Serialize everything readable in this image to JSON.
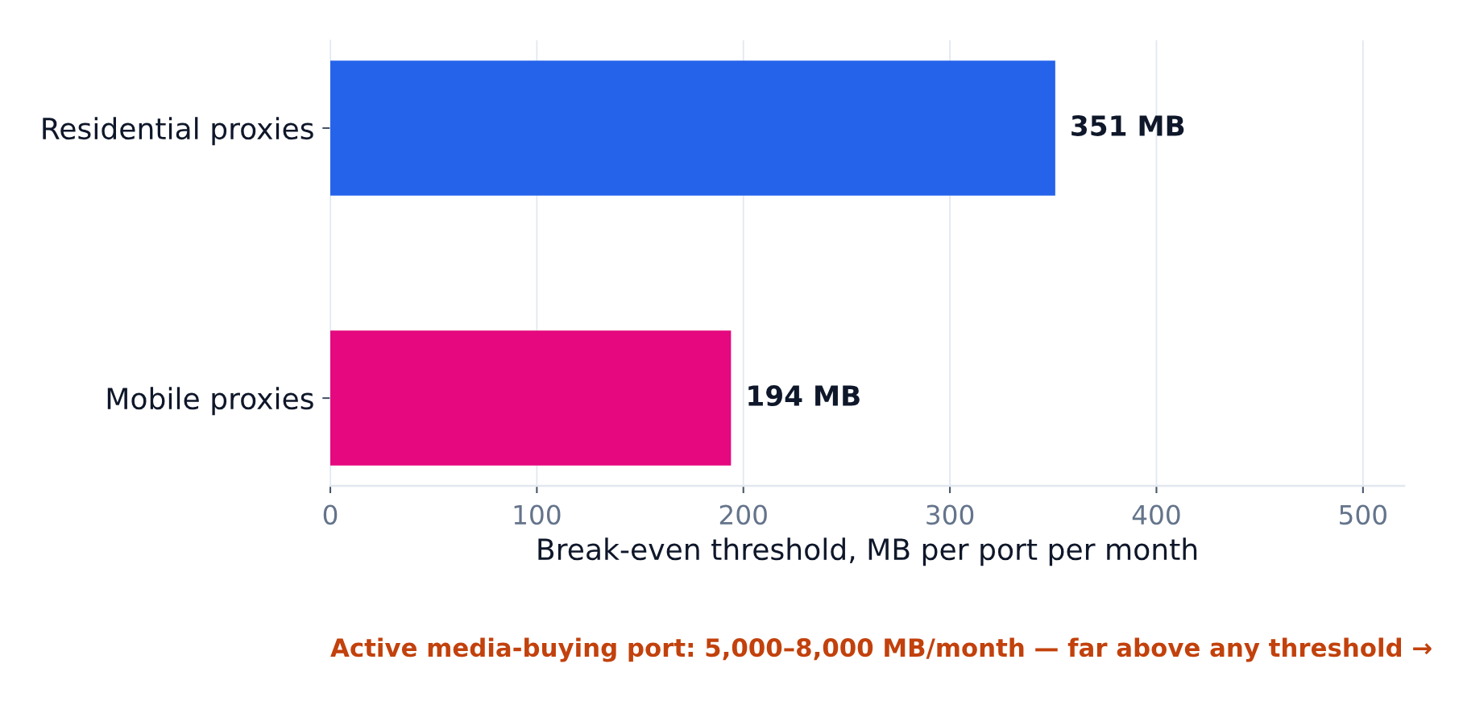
{
  "chart_data": {
    "type": "bar",
    "orientation": "horizontal",
    "categories": [
      "Residential proxies",
      "Mobile proxies"
    ],
    "values": [
      351,
      194
    ],
    "colors": [
      "#2563eb",
      "#e5087e"
    ],
    "value_labels": [
      "351 MB",
      "194 MB"
    ],
    "xlabel": "Break-even threshold, MB per port per month",
    "xlim": [
      0,
      520
    ],
    "xticks": [
      0,
      100,
      200,
      300,
      400,
      500
    ],
    "grid": "x",
    "annotations": [
      "Active media-buying port: 5,000–8,000 MB/month — far above any threshold →"
    ]
  }
}
